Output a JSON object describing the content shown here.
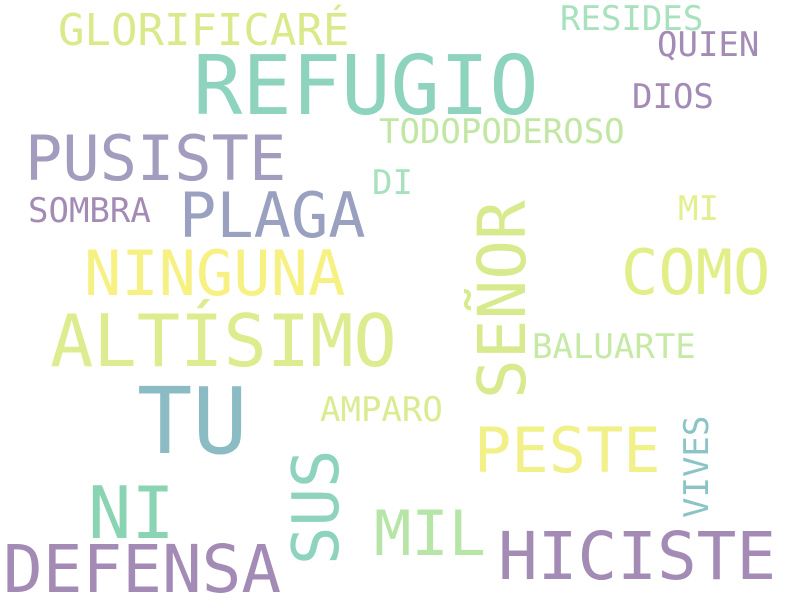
{
  "words": [
    {
      "text": "REFUGIO",
      "color": "#8dd3be"
    },
    {
      "text": "GLORIFICARÉ",
      "color": "#dbe98b"
    },
    {
      "text": "RESIDES",
      "color": "#a8e1bd"
    },
    {
      "text": "QUIEN",
      "color": "#a38bb5"
    },
    {
      "text": "DIOS",
      "color": "#a38bb5"
    },
    {
      "text": "TODOPODEROSO",
      "color": "#c2e6a3"
    },
    {
      "text": "PUSISTE",
      "color": "#a39cbf"
    },
    {
      "text": "DI",
      "color": "#a8e1bd"
    },
    {
      "text": "SOMBRA",
      "color": "#a38bb5"
    },
    {
      "text": "PLAGA",
      "color": "#9aa1c0"
    },
    {
      "text": "SEÑOR",
      "color": "#d7eb8e"
    },
    {
      "text": "MI",
      "color": "#e4ef8f"
    },
    {
      "text": "NINGUNA",
      "color": "#f7f184"
    },
    {
      "text": "COMO",
      "color": "#e2ef88"
    },
    {
      "text": "ALTÍSIMO",
      "color": "#dcec8f"
    },
    {
      "text": "BALUARTE",
      "color": "#c6e9a6"
    },
    {
      "text": "TU",
      "color": "#8bbcc4"
    },
    {
      "text": "AMPARO",
      "color": "#d9ec91"
    },
    {
      "text": "SUS",
      "color": "#8dd3be"
    },
    {
      "text": "PESTE",
      "color": "#f1f089"
    },
    {
      "text": "VIVES",
      "color": "#8bc4c6"
    },
    {
      "text": "NI",
      "color": "#8ad4b4"
    },
    {
      "text": "MIL",
      "color": "#b7e5a8"
    },
    {
      "text": "HICISTE",
      "color": "#a38bb5"
    },
    {
      "text": "DEFENSA",
      "color": "#a38bb5"
    }
  ]
}
